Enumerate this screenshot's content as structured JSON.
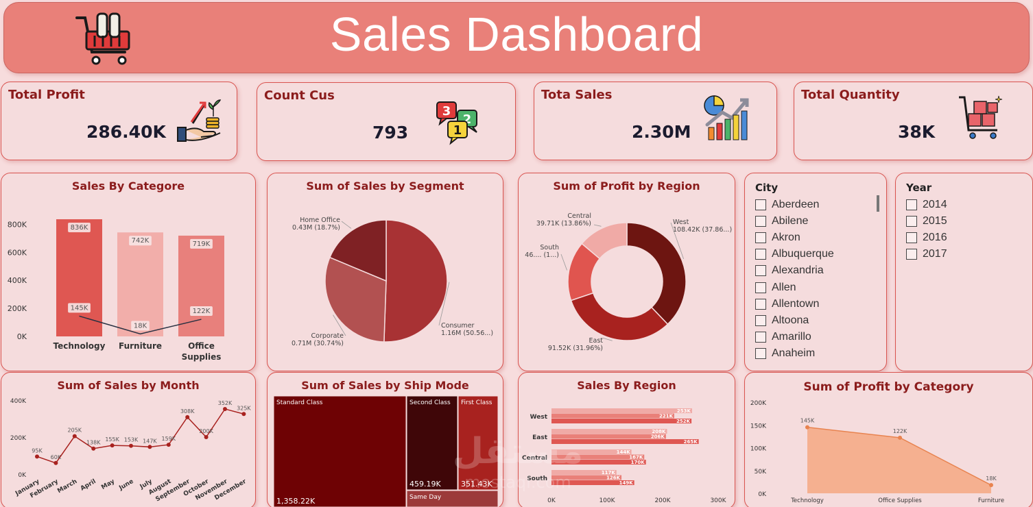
{
  "header": {
    "title": "Sales Dashboard"
  },
  "kpis": {
    "profit": {
      "title": "Total Profit",
      "value": "286.40K"
    },
    "customers": {
      "title": "Count Cus",
      "value": "793"
    },
    "sales": {
      "title": "Tota Sales",
      "value": "2.30M"
    },
    "quantity": {
      "title": "Total Quantity",
      "value": "38K"
    }
  },
  "colors": {
    "header": "#e98079",
    "panel": "#f5dcdd",
    "accent": "#8b1c1c",
    "border": "#d9534f"
  },
  "city_slicer": {
    "title": "City",
    "items": [
      "Aberdeen",
      "Abilene",
      "Akron",
      "Albuquerque",
      "Alexandria",
      "Allen",
      "Allentown",
      "Altoona",
      "Amarillo",
      "Anaheim"
    ]
  },
  "year_slicer": {
    "title": "Year",
    "items": [
      "2014",
      "2015",
      "2016",
      "2017"
    ]
  },
  "watermark": {
    "text": "مستقل",
    "subtext": "mostaql.com"
  },
  "chart_data": [
    {
      "id": "sales_by_category",
      "type": "bar",
      "title": "Sales By Categore",
      "categories": [
        "Technology",
        "Furniture",
        "Office Supplies"
      ],
      "category_lines": [
        [
          "Technology"
        ],
        [
          "Furniture"
        ],
        [
          "Office",
          "Supplies"
        ]
      ],
      "series": [
        {
          "name": "Sales",
          "type": "bar",
          "values": [
            836,
            742,
            719
          ],
          "labels": [
            "836K",
            "742K",
            "719K"
          ],
          "colors": [
            "#df5752",
            "#f2aeaa",
            "#e8807c"
          ]
        },
        {
          "name": "Profit",
          "type": "line",
          "values": [
            145,
            18,
            122
          ],
          "labels": [
            "145K",
            "18K",
            "122K"
          ]
        }
      ],
      "yticks": [
        "0K",
        "200K",
        "400K",
        "600K",
        "800K"
      ],
      "ylim": [
        0,
        880
      ]
    },
    {
      "id": "sales_by_segment",
      "type": "pie",
      "title": "Sum of Sales by Segment",
      "slices": [
        {
          "name": "Consumer",
          "value": 50.56,
          "label": "Consumer",
          "sublabel": "1.16M (50.56...)",
          "color": "#a83234"
        },
        {
          "name": "Corporate",
          "value": 30.74,
          "label": "Corporate",
          "sublabel": "0.71M (30.74%)",
          "color": "#b25151"
        },
        {
          "name": "Home Office",
          "value": 18.7,
          "label": "Home Office",
          "sublabel": "0.43M (18.7%)",
          "color": "#7f2124"
        }
      ]
    },
    {
      "id": "profit_by_region",
      "type": "pie",
      "title": "Sum of Profit by Region",
      "donut": true,
      "slices": [
        {
          "name": "West",
          "value": 37.86,
          "label": "West",
          "sublabel": "108.42K (37.86...)",
          "color": "#6d1511"
        },
        {
          "name": "East",
          "value": 31.96,
          "label": "East",
          "sublabel": "91.52K (31.96%)",
          "color": "#a8221f"
        },
        {
          "name": "South",
          "value": 16.32,
          "label": "South",
          "sublabel": "46.... (1...)",
          "color": "#e0554f"
        },
        {
          "name": "Central",
          "value": 13.86,
          "label": "Central",
          "sublabel": "39.71K (13.86%)",
          "color": "#f0aaa6"
        }
      ]
    },
    {
      "id": "sales_by_month",
      "type": "line",
      "title": "Sum of Sales by Month",
      "categories": [
        "January",
        "February",
        "March",
        "April",
        "May",
        "June",
        "July",
        "August",
        "September",
        "October",
        "November",
        "December"
      ],
      "values": [
        95,
        60,
        205,
        138,
        155,
        153,
        147,
        159,
        308,
        200,
        352,
        325
      ],
      "labels": [
        "95K",
        "60K",
        "205K",
        "138K",
        "155K",
        "153K",
        "147K",
        "159K",
        "308K",
        "200K",
        "352K",
        "325K"
      ],
      "yticks": [
        "0K",
        "200K",
        "400K"
      ],
      "ylim": [
        0,
        400
      ]
    },
    {
      "id": "sales_by_ship_mode",
      "type": "treemap",
      "title": "Sum of Sales by Ship Mode",
      "items": [
        {
          "name": "Standard Class",
          "value": 1358.22,
          "label": "1,358.22K",
          "color": "#6e0204"
        },
        {
          "name": "Second Class",
          "value": 459.19,
          "label": "459.19K",
          "color": "#3f0608"
        },
        {
          "name": "First Class",
          "value": 351.43,
          "label": "351.43K",
          "color": "#a8221f"
        },
        {
          "name": "Same Day",
          "value": 128.36,
          "label": "",
          "color": "#9c3a3a"
        }
      ]
    },
    {
      "id": "sales_by_region",
      "type": "bar",
      "orientation": "horizontal",
      "title": "Sales By Region",
      "categories": [
        "West",
        "East",
        "Central",
        "South"
      ],
      "series": [
        {
          "name": "Series 1",
          "values": [
            253,
            208,
            144,
            117
          ],
          "labels": [
            "253K",
            "208K",
            "144K",
            "117K"
          ],
          "color": "#f0aaa6"
        },
        {
          "name": "Series 2",
          "values": [
            221,
            206,
            167,
            126
          ],
          "labels": [
            "221K",
            "206K",
            "167K",
            "126K"
          ],
          "color": "#e98079"
        },
        {
          "name": "Series 3",
          "values": [
            252,
            265,
            170,
            149
          ],
          "labels": [
            "252K",
            "265K",
            "170K",
            "149K"
          ],
          "color": "#df5752"
        }
      ],
      "xticks": [
        "0K",
        "100K",
        "200K",
        "300K"
      ],
      "xlim": [
        0,
        300
      ]
    },
    {
      "id": "profit_by_category",
      "type": "area",
      "title": "Sum of Profit by Category",
      "categories": [
        "Technology",
        "Office Supplies",
        "Furniture"
      ],
      "values": [
        145,
        122,
        18
      ],
      "labels": [
        "145K",
        "122K",
        "18K"
      ],
      "yticks": [
        "0K",
        "50K",
        "100K",
        "150K",
        "200K"
      ],
      "ylim": [
        0,
        200
      ]
    }
  ]
}
